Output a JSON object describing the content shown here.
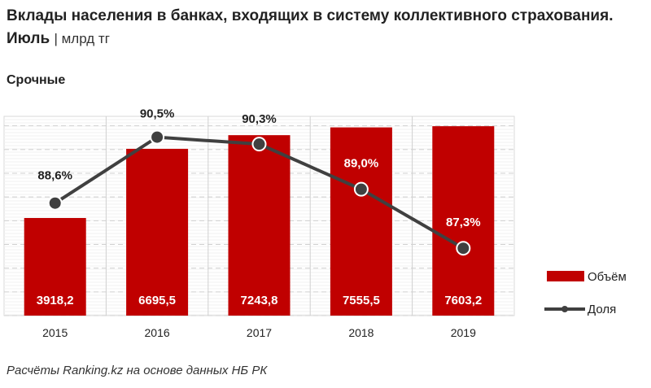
{
  "title": "Вклады населения в банках, входящих в систему коллективного страхования. Июль",
  "unit": "| млрд тг",
  "subtitle": "Срочные",
  "source": "Расчёты Ranking.kz на основе данных НБ РК",
  "chart_data": {
    "type": "bar",
    "categories": [
      "2015",
      "2016",
      "2017",
      "2018",
      "2019"
    ],
    "series": [
      {
        "name": "Объём",
        "type": "bar",
        "values": [
          3918.2,
          6695.5,
          7243.8,
          7555.5,
          7603.2
        ],
        "labels": [
          "3918,2",
          "6695,5",
          "7243,8",
          "7555,5",
          "7603,2"
        ],
        "color": "#c00000"
      },
      {
        "name": "Доля",
        "type": "line",
        "values": [
          88.6,
          90.5,
          90.3,
          89.0,
          87.3
        ],
        "labels": [
          "88,6%",
          "90,5%",
          "90,3%",
          "89,0%",
          "87,3%"
        ],
        "color": "#404040"
      }
    ],
    "ylim": [
      0,
      8000
    ],
    "y2lim": [
      85.36,
      91.1
    ],
    "legend": "right"
  }
}
